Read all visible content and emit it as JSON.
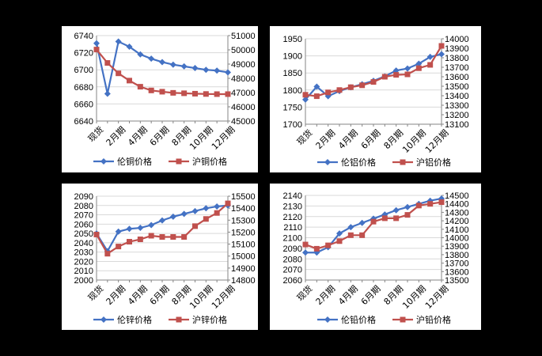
{
  "colors": {
    "lme": "#4472C4",
    "shfe": "#C0504D",
    "grid": "#d9d9d9",
    "axis": "#868686"
  },
  "chart_data": [
    {
      "type": "line",
      "categories": [
        "现货",
        "1月期",
        "2月期",
        "3月期",
        "4月期",
        "5月期",
        "6月期",
        "7月期",
        "8月期",
        "9月期",
        "10月期",
        "11月期",
        "12月期"
      ],
      "x_tick_labels": [
        "现货",
        "2月期",
        "4月期",
        "6月期",
        "8月期",
        "10月期",
        "12月期"
      ],
      "ylim": [
        6640,
        6740
      ],
      "y_ticks": [
        6640,
        6660,
        6680,
        6700,
        6720,
        6740
      ],
      "y2lim": [
        45000,
        51000
      ],
      "y2_ticks": [
        45000,
        46000,
        47000,
        48000,
        49000,
        50000,
        51000
      ],
      "series": [
        {
          "name": "伦铜价格",
          "axis": "left",
          "marker": "diamond",
          "values": [
            6731,
            6672,
            6733,
            6727,
            6718,
            6713,
            6709,
            6706,
            6704,
            6702,
            6700,
            6699,
            6697
          ]
        },
        {
          "name": "沪铜价格",
          "axis": "right",
          "marker": "square",
          "values": [
            50020,
            49080,
            48350,
            47840,
            47410,
            47150,
            47060,
            46980,
            46950,
            46920,
            46900,
            46890,
            46890
          ]
        }
      ]
    },
    {
      "type": "line",
      "categories": [
        "现货",
        "1月期",
        "2月期",
        "3月期",
        "4月期",
        "5月期",
        "6月期",
        "7月期",
        "8月期",
        "9月期",
        "10月期",
        "11月期",
        "12月期"
      ],
      "x_tick_labels": [
        "现货",
        "2月期",
        "4月期",
        "6月期",
        "8月期",
        "10月期",
        "12月期"
      ],
      "ylim": [
        1700,
        1950
      ],
      "y_ticks": [
        1700,
        1750,
        1800,
        1850,
        1900,
        1950
      ],
      "y2lim": [
        13100,
        14000
      ],
      "y2_ticks": [
        13100,
        13200,
        13300,
        13400,
        13500,
        13600,
        13700,
        13800,
        13900,
        14000
      ],
      "series": [
        {
          "name": "伦铝价格",
          "axis": "left",
          "marker": "diamond",
          "values": [
            1772,
            1810,
            1782,
            1797,
            1808,
            1817,
            1827,
            1840,
            1857,
            1863,
            1877,
            1897,
            1905
          ]
        },
        {
          "name": "沪铝价格",
          "axis": "right",
          "marker": "square",
          "values": [
            13410,
            13395,
            13435,
            13460,
            13490,
            13510,
            13545,
            13600,
            13620,
            13625,
            13690,
            13725,
            13925
          ]
        }
      ]
    },
    {
      "type": "line",
      "categories": [
        "现货",
        "1月期",
        "2月期",
        "3月期",
        "4月期",
        "5月期",
        "6月期",
        "7月期",
        "8月期",
        "9月期",
        "10月期",
        "11月期",
        "12月期"
      ],
      "x_tick_labels": [
        "现货",
        "2月期",
        "4月期",
        "6月期",
        "8月期",
        "10月期",
        "12月期"
      ],
      "ylim": [
        2000,
        2090
      ],
      "y_ticks": [
        2000,
        2010,
        2020,
        2030,
        2040,
        2050,
        2060,
        2070,
        2080,
        2090
      ],
      "y2lim": [
        14800,
        15500
      ],
      "y2_ticks": [
        14800,
        14900,
        15000,
        15100,
        15200,
        15300,
        15400,
        15500
      ],
      "series": [
        {
          "name": "伦锌价格",
          "axis": "left",
          "marker": "diamond",
          "values": [
            2050,
            2031,
            2052,
            2055,
            2056,
            2059,
            2064,
            2068,
            2071,
            2074,
            2077,
            2079,
            2080
          ]
        },
        {
          "name": "沪锌价格",
          "axis": "right",
          "marker": "square",
          "values": [
            15180,
            15020,
            15080,
            15120,
            15140,
            15170,
            15160,
            15160,
            15160,
            15250,
            15310,
            15360,
            15440
          ]
        }
      ]
    },
    {
      "type": "line",
      "categories": [
        "现货",
        "1月期",
        "2月期",
        "3月期",
        "4月期",
        "5月期",
        "6月期",
        "7月期",
        "8月期",
        "9月期",
        "10月期",
        "11月期",
        "12月期"
      ],
      "x_tick_labels": [
        "现货",
        "2月期",
        "4月期",
        "6月期",
        "8月期",
        "10月期",
        "12月期"
      ],
      "ylim": [
        2060,
        2140
      ],
      "y_ticks": [
        2060,
        2070,
        2080,
        2090,
        2100,
        2110,
        2120,
        2130,
        2140
      ],
      "y2lim": [
        13500,
        14500
      ],
      "y2_ticks": [
        13500,
        13600,
        13700,
        13800,
        13900,
        14000,
        14100,
        14200,
        14300,
        14400,
        14500
      ],
      "series": [
        {
          "name": "伦铅价格",
          "axis": "left",
          "marker": "diamond",
          "values": [
            2086,
            2086,
            2091,
            2104,
            2110,
            2114,
            2118,
            2122,
            2126,
            2129,
            2132,
            2135,
            2137
          ]
        },
        {
          "name": "沪铅价格",
          "axis": "right",
          "marker": "square",
          "values": [
            13920,
            13870,
            13910,
            13960,
            14030,
            14030,
            14190,
            14230,
            14230,
            14270,
            14380,
            14400,
            14420
          ]
        }
      ]
    }
  ]
}
